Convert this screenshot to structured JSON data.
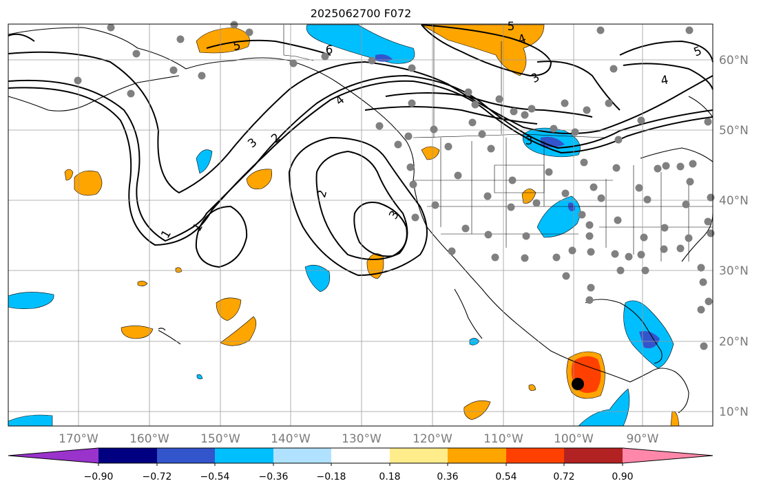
{
  "title": "2025062700 F072",
  "map": {
    "lon_labels": [
      "170°W",
      "160°W",
      "150°W",
      "140°W",
      "130°W",
      "120°W",
      "110°W",
      "100°W",
      "90°W"
    ],
    "lat_labels": [
      "60°N",
      "50°N",
      "40°N",
      "30°N",
      "20°N",
      "10°N"
    ],
    "contour_labels": [
      "1",
      "1",
      "2",
      "2",
      "3",
      "3",
      "4",
      "4",
      "4",
      "5",
      "5",
      "5",
      "6",
      "3",
      "3"
    ],
    "grid_line_color": "#9a9a9a"
  },
  "colorbar": {
    "ticks": [
      "−0.90",
      "−0.72",
      "−0.54",
      "−0.36",
      "−0.18",
      "0.18",
      "0.36",
      "0.54",
      "0.72",
      "0.90"
    ],
    "colors": [
      "#9933cc",
      "#000080",
      "#3355cc",
      "#00bfff",
      "#b0e2ff",
      "#ffffff",
      "#ffec8b",
      "#ffa500",
      "#ff4000",
      "#b22222",
      "#ff88aa"
    ]
  }
}
